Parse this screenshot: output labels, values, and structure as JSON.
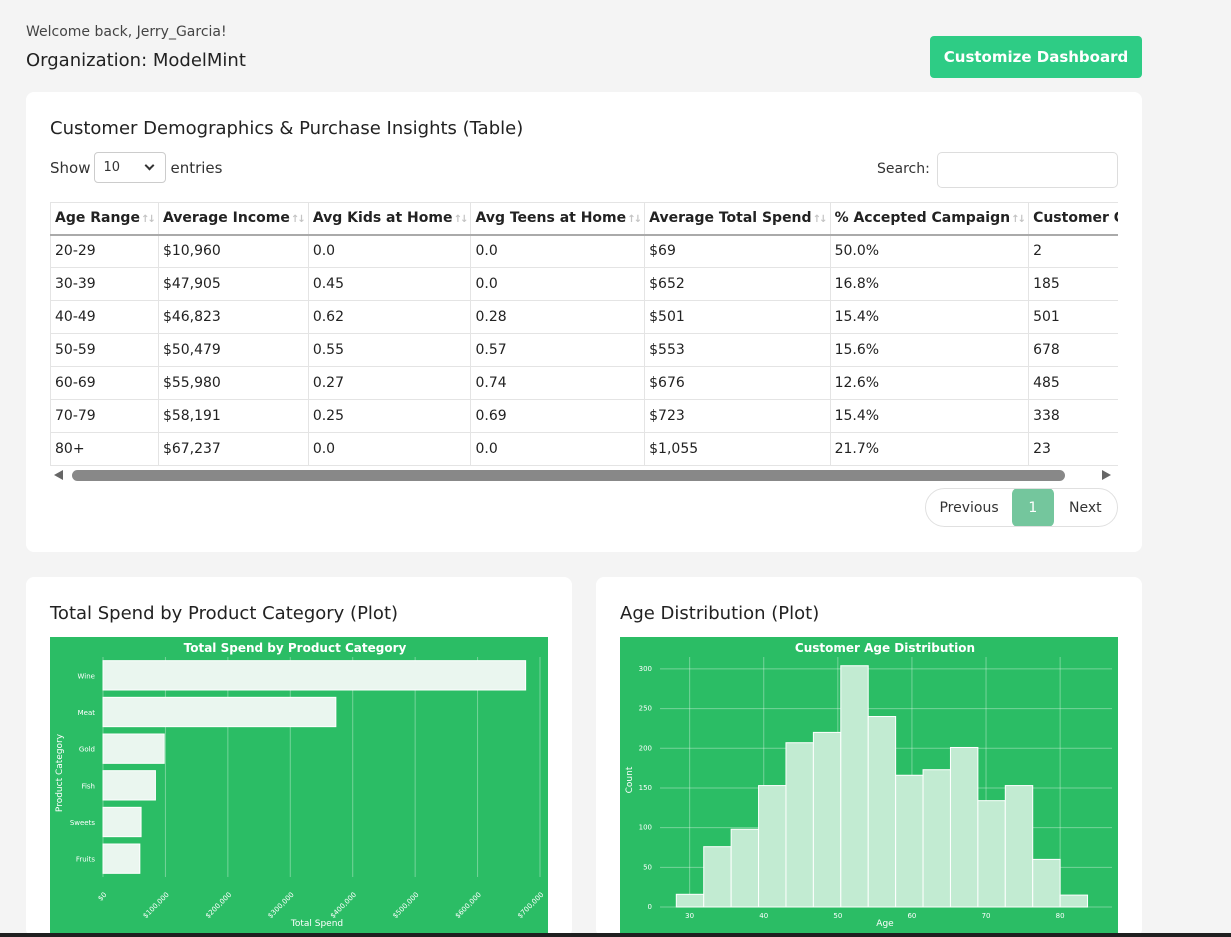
{
  "header": {
    "welcome": "Welcome back, Jerry_Garcia!",
    "organization": "Organization: ModelMint",
    "customize_button": "Customize Dashboard"
  },
  "table_card": {
    "title": "Customer Demographics & Purchase Insights (Table)",
    "show_label": "Show",
    "entries_label": "entries",
    "page_length": "10",
    "search_label": "Search:",
    "search_value": "",
    "columns": [
      "Age Range",
      "Average Income",
      "Avg Kids at Home",
      "Avg Teens at Home",
      "Average Total Spend",
      "% Accepted Campaign",
      "Customer Count"
    ],
    "rows": [
      [
        "20-29",
        "$10,960",
        "0.0",
        "0.0",
        "$69",
        "50.0%",
        "2"
      ],
      [
        "30-39",
        "$47,905",
        "0.45",
        "0.0",
        "$652",
        "16.8%",
        "185"
      ],
      [
        "40-49",
        "$46,823",
        "0.62",
        "0.28",
        "$501",
        "15.4%",
        "501"
      ],
      [
        "50-59",
        "$50,479",
        "0.55",
        "0.57",
        "$553",
        "15.6%",
        "678"
      ],
      [
        "60-69",
        "$55,980",
        "0.27",
        "0.74",
        "$676",
        "12.6%",
        "485"
      ],
      [
        "70-79",
        "$58,191",
        "0.25",
        "0.69",
        "$723",
        "15.4%",
        "338"
      ],
      [
        "80+",
        "$67,237",
        "0.0",
        "0.0",
        "$1,055",
        "21.7%",
        "23"
      ]
    ],
    "pagination": {
      "previous": "Previous",
      "current_page": "1",
      "next": "Next"
    }
  },
  "plot1_card": {
    "title": "Total Spend by Product Category (Plot)"
  },
  "plot2_card": {
    "title": "Age Distribution (Plot)"
  },
  "colors": {
    "accent": "#2ecc85",
    "plot_bg": "#2bbd65",
    "page_active": "#74c69d"
  },
  "chart_data": [
    {
      "type": "bar",
      "orientation": "horizontal",
      "title": "Total Spend by Product Category",
      "xlabel": "Total Spend",
      "ylabel": "Product Category",
      "categories": [
        "Wine",
        "Meat",
        "Gold",
        "Fish",
        "Sweets",
        "Fruits"
      ],
      "values": [
        677000,
        373000,
        98000,
        84000,
        61000,
        59000
      ],
      "xlim": [
        0,
        700000
      ],
      "xticks": [
        0,
        100000,
        200000,
        300000,
        400000,
        500000,
        600000,
        700000
      ],
      "xtick_labels": [
        "$0",
        "$100,000",
        "$200,000",
        "$300,000",
        "$400,000",
        "$500,000",
        "$600,000",
        "$700,000"
      ],
      "grid": true
    },
    {
      "type": "histogram",
      "title": "Customer Age Distribution",
      "xlabel": "Age",
      "ylabel": "Count",
      "bin_start": 28.2,
      "bin_width": 3.7,
      "counts": [
        16,
        76,
        98,
        153,
        207,
        220,
        304,
        240,
        166,
        173,
        201,
        134,
        153,
        60,
        15
      ],
      "xlim": [
        26,
        87
      ],
      "ylim": [
        0,
        315
      ],
      "xticks": [
        30,
        40,
        50,
        60,
        70,
        80
      ],
      "yticks": [
        0,
        50,
        100,
        150,
        200,
        250,
        300
      ],
      "grid": true
    }
  ]
}
